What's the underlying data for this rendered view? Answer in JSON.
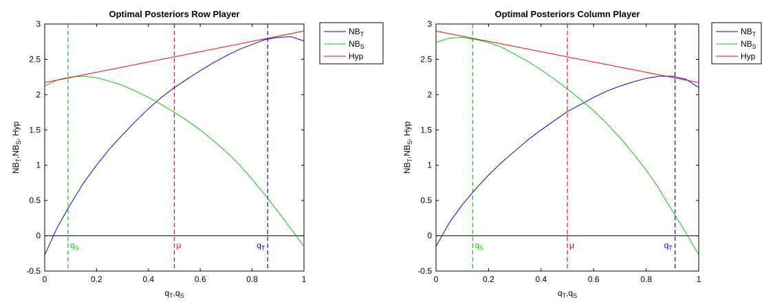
{
  "chart_data": [
    {
      "type": "line",
      "title": "Optimal Posteriors Row Player",
      "xlabel": "q_T,q_S",
      "ylabel": "NB_T,NB_S, Hyp",
      "xlim": [
        0,
        1
      ],
      "ylim": [
        -0.5,
        3
      ],
      "x_ticks": [
        "0",
        "0.2",
        "0.4",
        "0.6",
        "0.8",
        "1"
      ],
      "y_ticks": [
        "-0.5",
        "0",
        "0.5",
        "1",
        "1.5",
        "2",
        "2.5",
        "3"
      ],
      "grid": false,
      "legend": "top-right (outside)",
      "series": [
        {
          "name": "NB_T",
          "color": "#0000ff",
          "x": [
            0,
            0.05,
            0.1,
            0.15,
            0.2,
            0.25,
            0.3,
            0.35,
            0.4,
            0.45,
            0.5,
            0.55,
            0.6,
            0.65,
            0.7,
            0.75,
            0.8,
            0.85,
            0.9,
            0.95,
            1
          ],
          "y": [
            -0.27,
            0.13,
            0.45,
            0.75,
            1.0,
            1.23,
            1.43,
            1.62,
            1.8,
            1.96,
            2.1,
            2.22,
            2.34,
            2.45,
            2.55,
            2.64,
            2.71,
            2.78,
            2.81,
            2.82,
            2.76
          ]
        },
        {
          "name": "NB_S",
          "color": "#00cc00",
          "x": [
            0,
            0.05,
            0.1,
            0.15,
            0.2,
            0.25,
            0.3,
            0.35,
            0.4,
            0.45,
            0.5,
            0.55,
            0.6,
            0.65,
            0.7,
            0.75,
            0.8,
            0.85,
            0.9,
            0.95,
            1
          ],
          "y": [
            2.12,
            2.21,
            2.25,
            2.26,
            2.24,
            2.19,
            2.13,
            2.05,
            1.96,
            1.86,
            1.75,
            1.63,
            1.5,
            1.35,
            1.19,
            1.01,
            0.8,
            0.58,
            0.34,
            0.1,
            -0.15
          ]
        },
        {
          "name": "Hyp",
          "color": "#ff0000",
          "x": [
            0,
            1
          ],
          "y": [
            2.17,
            2.9
          ]
        }
      ],
      "vlines": [
        {
          "x": 0.09,
          "color": "#00cc00",
          "label": "q_S"
        },
        {
          "x": 0.5,
          "color": "#ff0000",
          "label": "μ"
        },
        {
          "x": 0.86,
          "color": "#0000ff",
          "label": "q_T"
        }
      ],
      "hline": {
        "y": 0,
        "color": "#000000"
      }
    },
    {
      "type": "line",
      "title": "Optimal Posteriors Column Player",
      "xlabel": "q_T,q_S",
      "ylabel": "NB_T,NB_S, Hyp",
      "xlim": [
        0,
        1
      ],
      "ylim": [
        -0.5,
        3
      ],
      "x_ticks": [
        "0",
        "0.2",
        "0.4",
        "0.6",
        "0.8",
        "1"
      ],
      "y_ticks": [
        "-0.5",
        "0",
        "0.5",
        "1",
        "1.5",
        "2",
        "2.5",
        "3"
      ],
      "grid": false,
      "legend": "top-right (outside, clipped)",
      "series": [
        {
          "name": "NB_T",
          "color": "#0000ff",
          "x": [
            0,
            0.05,
            0.1,
            0.15,
            0.2,
            0.25,
            0.3,
            0.35,
            0.4,
            0.45,
            0.5,
            0.55,
            0.6,
            0.65,
            0.7,
            0.75,
            0.8,
            0.85,
            0.9,
            0.95,
            1
          ],
          "y": [
            -0.15,
            0.18,
            0.44,
            0.66,
            0.86,
            1.04,
            1.2,
            1.36,
            1.5,
            1.63,
            1.76,
            1.86,
            1.96,
            2.05,
            2.12,
            2.18,
            2.23,
            2.26,
            2.26,
            2.22,
            2.1
          ]
        },
        {
          "name": "NB_S",
          "color": "#00cc00",
          "x": [
            0,
            0.05,
            0.1,
            0.15,
            0.2,
            0.25,
            0.3,
            0.35,
            0.4,
            0.45,
            0.5,
            0.55,
            0.6,
            0.65,
            0.7,
            0.75,
            0.8,
            0.85,
            0.9,
            0.95,
            1
          ],
          "y": [
            2.74,
            2.8,
            2.81,
            2.78,
            2.74,
            2.67,
            2.57,
            2.47,
            2.35,
            2.22,
            2.08,
            1.93,
            1.77,
            1.59,
            1.39,
            1.17,
            0.93,
            0.66,
            0.35,
            0.05,
            -0.27
          ]
        },
        {
          "name": "Hyp",
          "color": "#ff0000",
          "x": [
            0,
            1
          ],
          "y": [
            2.9,
            2.17
          ]
        }
      ],
      "vlines": [
        {
          "x": 0.14,
          "color": "#00cc00",
          "label": "q_S"
        },
        {
          "x": 0.5,
          "color": "#ff0000",
          "label": "μ"
        },
        {
          "x": 0.91,
          "color": "#0000ff",
          "label": "q_T"
        }
      ],
      "hline": {
        "y": 0,
        "color": "#000000"
      }
    }
  ]
}
